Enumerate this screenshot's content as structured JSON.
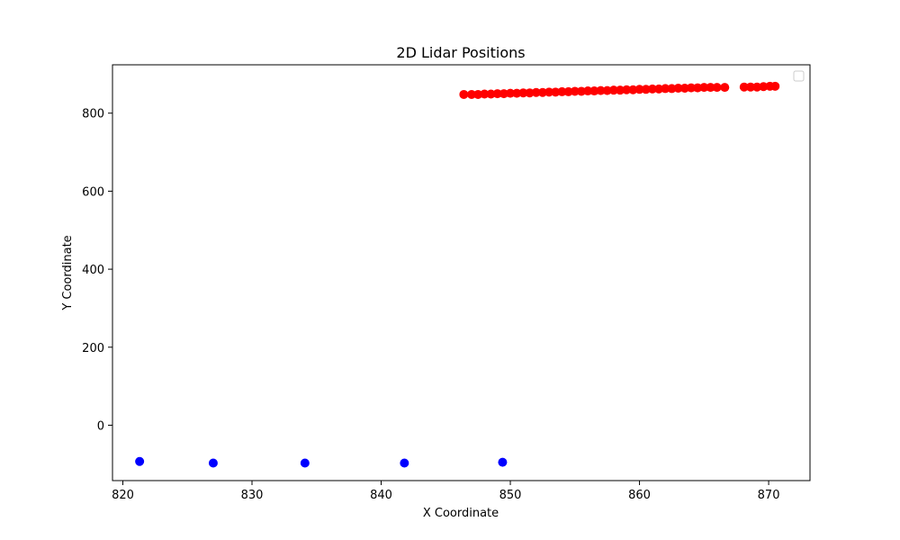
{
  "chart_data": {
    "type": "scatter",
    "title": "2D Lidar Positions",
    "xlabel": "X Coordinate",
    "ylabel": "Y Coordinate",
    "xlim": [
      819.2,
      873.2
    ],
    "ylim": [
      -142,
      924
    ],
    "x_ticks": [
      {
        "value": 820,
        "label": "820"
      },
      {
        "value": 830,
        "label": "830"
      },
      {
        "value": 840,
        "label": "840"
      },
      {
        "value": 850,
        "label": "850"
      },
      {
        "value": 860,
        "label": "860"
      },
      {
        "value": 870,
        "label": "870"
      }
    ],
    "y_ticks": [
      {
        "value": 0,
        "label": "0"
      },
      {
        "value": 200,
        "label": "200"
      },
      {
        "value": 400,
        "label": "400"
      },
      {
        "value": 600,
        "label": "600"
      },
      {
        "value": 800,
        "label": "800"
      }
    ],
    "grid": false,
    "legend": {
      "placement": "top-right",
      "entries": []
    },
    "series": [
      {
        "color": "#ff0000",
        "points": [
          [
            846.4,
            848
          ],
          [
            847.0,
            848
          ],
          [
            847.5,
            848
          ],
          [
            848.0,
            849
          ],
          [
            848.5,
            849
          ],
          [
            849.0,
            850
          ],
          [
            849.5,
            850
          ],
          [
            850.0,
            851
          ],
          [
            850.5,
            851
          ],
          [
            851.0,
            852
          ],
          [
            851.5,
            852
          ],
          [
            852.0,
            853
          ],
          [
            852.5,
            853
          ],
          [
            853.0,
            854
          ],
          [
            853.5,
            854
          ],
          [
            854.0,
            855
          ],
          [
            854.5,
            855
          ],
          [
            855.0,
            856
          ],
          [
            855.5,
            856
          ],
          [
            856.0,
            857
          ],
          [
            856.5,
            857
          ],
          [
            857.0,
            858
          ],
          [
            857.5,
            858
          ],
          [
            858.0,
            859
          ],
          [
            858.5,
            859
          ],
          [
            859.0,
            860
          ],
          [
            859.5,
            860
          ],
          [
            860.0,
            861
          ],
          [
            860.5,
            861
          ],
          [
            861.0,
            862
          ],
          [
            861.5,
            862
          ],
          [
            862.0,
            863
          ],
          [
            862.5,
            863
          ],
          [
            863.0,
            864
          ],
          [
            863.5,
            864
          ],
          [
            864.0,
            865
          ],
          [
            864.5,
            865
          ],
          [
            865.0,
            866
          ],
          [
            865.5,
            866
          ],
          [
            866.0,
            866
          ],
          [
            866.6,
            866
          ],
          [
            868.1,
            867
          ],
          [
            868.6,
            867
          ],
          [
            869.1,
            867
          ],
          [
            869.6,
            868
          ],
          [
            870.1,
            869
          ],
          [
            870.5,
            869
          ]
        ]
      },
      {
        "color": "#0000ff",
        "points": [
          [
            821.3,
            -93
          ],
          [
            827.0,
            -97
          ],
          [
            834.1,
            -97
          ],
          [
            841.8,
            -97
          ],
          [
            849.4,
            -95
          ]
        ]
      }
    ]
  }
}
